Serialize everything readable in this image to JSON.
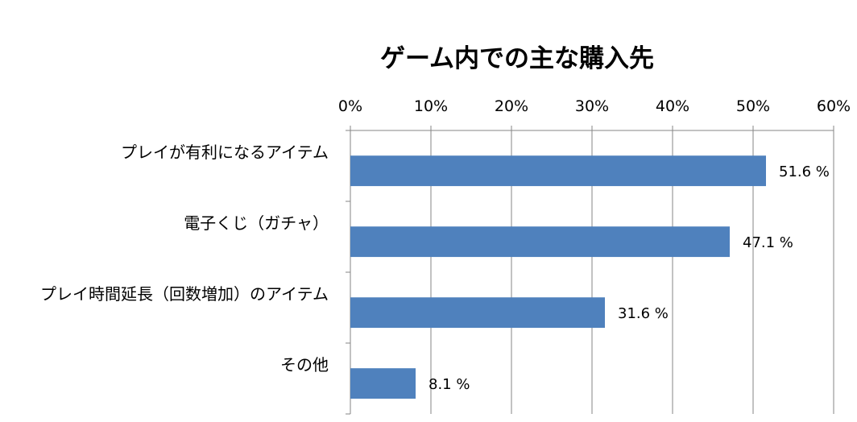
{
  "chart_data": {
    "type": "bar",
    "orientation": "horizontal",
    "title": "ゲーム内での主な購入先",
    "xlabel": "",
    "ylabel": "",
    "categories": [
      "プレイが有利になるアイテム",
      "電子くじ（ガチャ）",
      "プレイ時間延長（回数増加）のアイテム",
      "その他"
    ],
    "values": [
      51.6,
      47.1,
      31.6,
      8.1
    ],
    "data_labels": [
      "51.6 %",
      "47.1 %",
      "31.6 %",
      "8.1 %"
    ],
    "xlim": [
      0,
      60
    ],
    "x_ticks": [
      0,
      10,
      20,
      30,
      40,
      50,
      60
    ],
    "x_tick_labels": [
      "0%",
      "10%",
      "20%",
      "30%",
      "40%",
      "50%",
      "60%"
    ],
    "x_axis_position": "top",
    "grid": true,
    "legend": "none",
    "bar_color": "#4F81BD",
    "grid_color": "#868686"
  }
}
